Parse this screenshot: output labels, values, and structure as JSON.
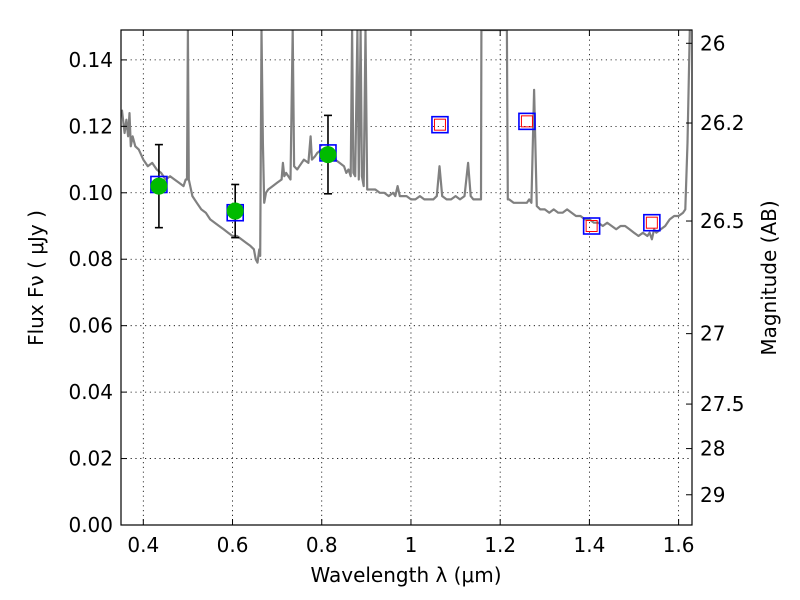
{
  "chart_data": {
    "type": "scatter",
    "title": "",
    "xlabel": "Wavelength  λ (μm)",
    "ylabel": "Flux  Fν  ( μJy )",
    "y2label": "Magnitude (AB)",
    "xlim": [
      0.35,
      1.63
    ],
    "ylim": [
      0.0,
      0.149
    ],
    "grid": true,
    "x_ticks": [
      0.4,
      0.6,
      0.8,
      1.0,
      1.2,
      1.4,
      1.6
    ],
    "x_tick_labels": [
      "0.4",
      "0.6",
      "0.8",
      "1",
      "1.2",
      "1.4",
      "1.6"
    ],
    "y_ticks": [
      0.0,
      0.02,
      0.04,
      0.06,
      0.08,
      0.1,
      0.12,
      0.14
    ],
    "y_tick_labels": [
      "0.00",
      "0.02",
      "0.04",
      "0.06",
      "0.08",
      "0.10",
      "0.12",
      "0.14"
    ],
    "y2_ticks": [
      {
        "label": "26",
        "flux": 0.145
      },
      {
        "label": "26.2",
        "flux": 0.121
      },
      {
        "label": "26.5",
        "flux": 0.0915
      },
      {
        "label": "27",
        "flux": 0.0576
      },
      {
        "label": "27.5",
        "flux": 0.0364
      },
      {
        "label": "28",
        "flux": 0.023
      },
      {
        "label": "29",
        "flux": 0.0091
      }
    ],
    "colors": {
      "model": "#808080",
      "observed_marker": "#00bb00",
      "errorbar": "#000000",
      "model_box": "#0000ff",
      "predicted_box": "#ff0000"
    },
    "observed": [
      {
        "x": 0.435,
        "y": 0.102,
        "err": 0.0125
      },
      {
        "x": 0.606,
        "y": 0.0945,
        "err": 0.008
      },
      {
        "x": 0.814,
        "y": 0.1115,
        "err": 0.0118
      }
    ],
    "model_photometry": [
      {
        "x": 0.435,
        "y": 0.1025
      },
      {
        "x": 0.606,
        "y": 0.094
      },
      {
        "x": 0.814,
        "y": 0.112
      },
      {
        "x": 1.065,
        "y": 0.1205
      },
      {
        "x": 1.26,
        "y": 0.1215
      },
      {
        "x": 1.405,
        "y": 0.09
      },
      {
        "x": 1.54,
        "y": 0.091
      }
    ],
    "predicted": [
      {
        "x": 1.065,
        "y": 0.1205
      },
      {
        "x": 1.26,
        "y": 0.1215
      },
      {
        "x": 1.405,
        "y": 0.09
      },
      {
        "x": 1.54,
        "y": 0.091
      }
    ],
    "model_spectrum": [
      [
        0.352,
        0.125
      ],
      [
        0.358,
        0.118
      ],
      [
        0.362,
        0.122
      ],
      [
        0.366,
        0.117
      ],
      [
        0.369,
        0.124
      ],
      [
        0.372,
        0.114
      ],
      [
        0.376,
        0.117
      ],
      [
        0.382,
        0.114
      ],
      [
        0.39,
        0.113
      ],
      [
        0.4,
        0.11
      ],
      [
        0.41,
        0.108
      ],
      [
        0.42,
        0.109
      ],
      [
        0.43,
        0.107
      ],
      [
        0.44,
        0.106
      ],
      [
        0.45,
        0.104
      ],
      [
        0.46,
        0.105
      ],
      [
        0.47,
        0.104
      ],
      [
        0.48,
        0.103
      ],
      [
        0.49,
        0.102
      ],
      [
        0.495,
        0.104
      ],
      [
        0.498,
        0.104
      ],
      [
        0.5,
        0.149
      ],
      [
        0.502,
        0.104
      ],
      [
        0.51,
        0.099
      ],
      [
        0.52,
        0.097
      ],
      [
        0.53,
        0.095
      ],
      [
        0.54,
        0.094
      ],
      [
        0.55,
        0.092
      ],
      [
        0.56,
        0.091
      ],
      [
        0.57,
        0.09
      ],
      [
        0.58,
        0.089
      ],
      [
        0.59,
        0.088
      ],
      [
        0.6,
        0.087
      ],
      [
        0.61,
        0.087
      ],
      [
        0.62,
        0.086
      ],
      [
        0.63,
        0.085
      ],
      [
        0.64,
        0.084
      ],
      [
        0.648,
        0.083
      ],
      [
        0.652,
        0.08
      ],
      [
        0.656,
        0.079
      ],
      [
        0.66,
        0.083
      ],
      [
        0.662,
        0.081
      ],
      [
        0.665,
        0.149
      ],
      [
        0.668,
        0.115
      ],
      [
        0.671,
        0.097
      ],
      [
        0.675,
        0.1
      ],
      [
        0.68,
        0.101
      ],
      [
        0.69,
        0.102
      ],
      [
        0.7,
        0.103
      ],
      [
        0.71,
        0.104
      ],
      [
        0.713,
        0.109
      ],
      [
        0.716,
        0.105
      ],
      [
        0.72,
        0.106
      ],
      [
        0.73,
        0.104
      ],
      [
        0.735,
        0.149
      ],
      [
        0.738,
        0.108
      ],
      [
        0.745,
        0.107
      ],
      [
        0.75,
        0.108
      ],
      [
        0.76,
        0.11
      ],
      [
        0.77,
        0.109
      ],
      [
        0.775,
        0.117
      ],
      [
        0.778,
        0.11
      ],
      [
        0.785,
        0.111
      ],
      [
        0.79,
        0.112
      ],
      [
        0.8,
        0.113
      ],
      [
        0.81,
        0.112
      ],
      [
        0.82,
        0.111
      ],
      [
        0.83,
        0.11
      ],
      [
        0.84,
        0.109
      ],
      [
        0.85,
        0.108
      ],
      [
        0.855,
        0.106
      ],
      [
        0.86,
        0.107
      ],
      [
        0.865,
        0.105
      ],
      [
        0.868,
        0.149
      ],
      [
        0.871,
        0.106
      ],
      [
        0.875,
        0.105
      ],
      [
        0.88,
        0.149
      ],
      [
        0.883,
        0.104
      ],
      [
        0.887,
        0.149
      ],
      [
        0.89,
        0.105
      ],
      [
        0.894,
        0.102
      ],
      [
        0.898,
        0.149
      ],
      [
        0.902,
        0.101
      ],
      [
        0.91,
        0.101
      ],
      [
        0.92,
        0.101
      ],
      [
        0.93,
        0.1
      ],
      [
        0.94,
        0.1
      ],
      [
        0.95,
        0.099
      ],
      [
        0.96,
        0.1
      ],
      [
        0.965,
        0.099
      ],
      [
        0.97,
        0.102
      ],
      [
        0.975,
        0.099
      ],
      [
        0.98,
        0.099
      ],
      [
        0.99,
        0.099
      ],
      [
        1.0,
        0.098
      ],
      [
        1.01,
        0.098
      ],
      [
        1.02,
        0.099
      ],
      [
        1.03,
        0.098
      ],
      [
        1.04,
        0.098
      ],
      [
        1.05,
        0.098
      ],
      [
        1.058,
        0.099
      ],
      [
        1.064,
        0.108
      ],
      [
        1.07,
        0.099
      ],
      [
        1.08,
        0.098
      ],
      [
        1.09,
        0.098
      ],
      [
        1.1,
        0.099
      ],
      [
        1.11,
        0.098
      ],
      [
        1.12,
        0.099
      ],
      [
        1.128,
        0.109
      ],
      [
        1.134,
        0.099
      ],
      [
        1.14,
        0.098
      ],
      [
        1.15,
        0.098
      ],
      [
        1.157,
        0.098
      ],
      [
        1.158,
        0.149
      ],
      [
        1.215,
        0.149
      ],
      [
        1.217,
        0.098
      ],
      [
        1.22,
        0.098
      ],
      [
        1.23,
        0.097
      ],
      [
        1.24,
        0.097
      ],
      [
        1.25,
        0.097
      ],
      [
        1.26,
        0.097
      ],
      [
        1.265,
        0.098
      ],
      [
        1.27,
        0.097
      ],
      [
        1.276,
        0.131
      ],
      [
        1.282,
        0.096
      ],
      [
        1.29,
        0.095
      ],
      [
        1.3,
        0.095
      ],
      [
        1.31,
        0.094
      ],
      [
        1.32,
        0.095
      ],
      [
        1.33,
        0.094
      ],
      [
        1.34,
        0.094
      ],
      [
        1.35,
        0.095
      ],
      [
        1.36,
        0.094
      ],
      [
        1.37,
        0.093
      ],
      [
        1.38,
        0.093
      ],
      [
        1.39,
        0.092
      ],
      [
        1.4,
        0.092
      ],
      [
        1.41,
        0.091
      ],
      [
        1.42,
        0.091
      ],
      [
        1.43,
        0.09
      ],
      [
        1.44,
        0.091
      ],
      [
        1.45,
        0.09
      ],
      [
        1.46,
        0.089
      ],
      [
        1.47,
        0.09
      ],
      [
        1.48,
        0.09
      ],
      [
        1.49,
        0.089
      ],
      [
        1.5,
        0.088
      ],
      [
        1.51,
        0.087
      ],
      [
        1.52,
        0.088
      ],
      [
        1.53,
        0.087
      ],
      [
        1.535,
        0.088
      ],
      [
        1.54,
        0.086
      ],
      [
        1.545,
        0.089
      ],
      [
        1.55,
        0.088
      ],
      [
        1.56,
        0.089
      ],
      [
        1.57,
        0.09
      ],
      [
        1.58,
        0.092
      ],
      [
        1.59,
        0.093
      ],
      [
        1.6,
        0.093
      ],
      [
        1.61,
        0.094
      ],
      [
        1.615,
        0.095
      ],
      [
        1.62,
        0.115
      ],
      [
        1.625,
        0.149
      ]
    ]
  }
}
